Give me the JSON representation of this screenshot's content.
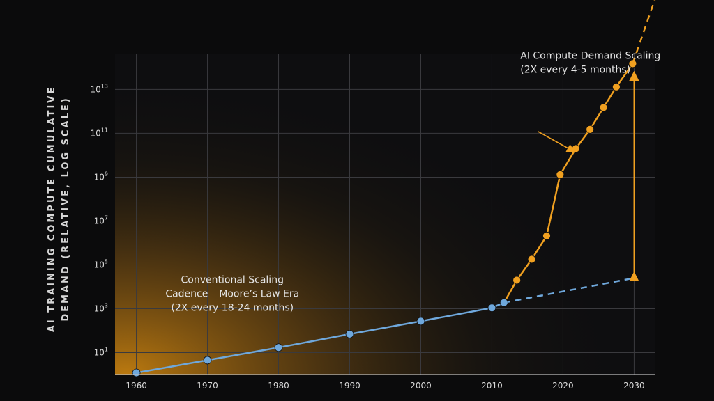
{
  "chart_data": {
    "type": "line",
    "ylabel_lines": [
      "AI TRAINING COMPUTE CUMULATIVE",
      "DEMAND (RELATIVE, LOG SCALE)"
    ],
    "xlabel": "",
    "x_ticks": [
      1960,
      1970,
      1980,
      1990,
      2000,
      2010,
      2020,
      2030
    ],
    "y_ticks": [
      {
        "base": "10",
        "exp": "1",
        "value": 10
      },
      {
        "base": "10",
        "exp": "3",
        "value": 1000
      },
      {
        "base": "10",
        "exp": "5",
        "value": 100000
      },
      {
        "base": "10",
        "exp": "7",
        "value": 10000000
      },
      {
        "base": "10",
        "exp": "9",
        "value": 1000000000
      },
      {
        "base": "10",
        "exp": "11",
        "value": 100000000000
      },
      {
        "base": "10",
        "exp": "13",
        "value": 10000000000000
      }
    ],
    "xlim": [
      1957,
      2033
    ],
    "y_log_range": [
      0,
      14.6
    ],
    "y_scale": "log",
    "grid": true,
    "series": [
      {
        "style": "solid",
        "color": "#6fa8dc",
        "x": [
          1960,
          1970,
          1980,
          1990,
          2000,
          2010,
          2011.7
        ],
        "y": [
          1.2,
          4.5,
          17,
          70,
          270,
          1100,
          1900
        ]
      },
      {
        "style": "dashed",
        "color": "#6fa8dc",
        "x": [
          2011.7,
          2030
        ],
        "y": [
          1900,
          25000
        ]
      },
      {
        "style": "solid",
        "color": "#f0a020",
        "x": [
          2011.7,
          2013.5,
          2015.6,
          2017.7,
          2019.6,
          2021.8,
          2023.8,
          2025.7,
          2027.5,
          2029.8
        ],
        "y": [
          1900,
          20000,
          180000,
          2100000,
          1300000000,
          20000000000,
          150000000000,
          1500000000000,
          13000000000000,
          150000000000000
        ]
      },
      {
        "style": "dashed",
        "color": "#f0a020",
        "x": [
          2029.8,
          2033
        ],
        "y": [
          150000000000000,
          150000000000000000
        ]
      }
    ],
    "annotations": [
      {
        "lines": [
          "Conventional Scaling",
          "Cadence – Moore’s Law Era",
          "(2X every 18-24 months)"
        ],
        "x": 1973.5,
        "y": 15000
      },
      {
        "lines": [
          "AI Compute Demand Scaling",
          "(2X every 4-5 months)"
        ],
        "x": 2014,
        "y": 250000000000000
      }
    ],
    "arrow_from": {
      "x": 2016.5,
      "y": 120000000000
    },
    "arrow_to": {
      "x": 2021.5,
      "y": 15000000000
    },
    "gap_arrow": {
      "x": 2030,
      "y_bottom": 25000,
      "y_top": 150000000000000
    },
    "colors": {
      "background": "#0b0b0c",
      "plot_bg": "#0e0e10",
      "grid": "#3a3a3e",
      "tick_text": "#d9d9d9",
      "blue": "#6fa8dc",
      "orange": "#f0a020",
      "glow": "#b5740e"
    }
  }
}
